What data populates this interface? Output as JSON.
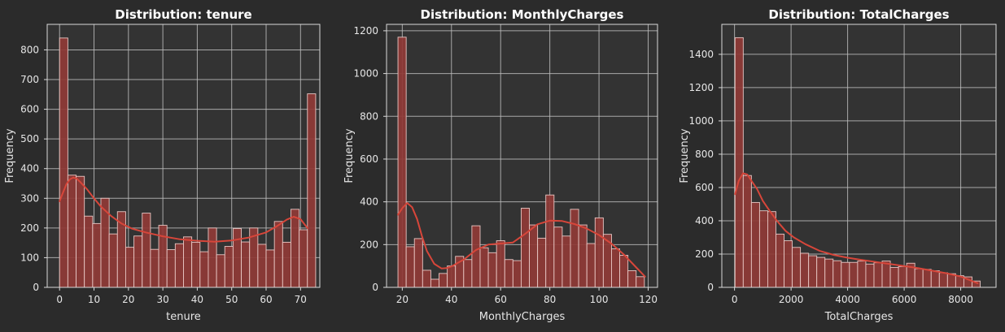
{
  "colors": {
    "figure_bg": "#2b2b2b",
    "axes_bg": "#333333",
    "grid": "#bdbdbd",
    "spine": "#d9d9d9",
    "bar_fill": "#8f3a36",
    "bar_edge": "#e8c7c4",
    "kde": "#d7463a",
    "text": "#ffffff"
  },
  "chart_data": [
    {
      "type": "bar",
      "title": "Distribution: tenure",
      "xlabel": "tenure",
      "ylabel": "Frequency",
      "xlim": [
        -3.6,
        75.6
      ],
      "ylim": [
        0,
        886
      ],
      "xticks": [
        0,
        10,
        20,
        30,
        40,
        50,
        60,
        70
      ],
      "yticks": [
        0,
        100,
        200,
        300,
        400,
        500,
        600,
        700,
        800
      ],
      "grid": true,
      "bin_start": 0,
      "bin_width": 2.4,
      "values": [
        840,
        378,
        374,
        240,
        215,
        300,
        180,
        255,
        135,
        173,
        250,
        128,
        209,
        127,
        147,
        170,
        152,
        120,
        200,
        110,
        138,
        198,
        153,
        200,
        145,
        126,
        222,
        152,
        263,
        194,
        652
      ],
      "kde": {
        "x": [
          0,
          1,
          2,
          3,
          4,
          5,
          6,
          8,
          10,
          12,
          15,
          18,
          21,
          25,
          30,
          35,
          40,
          45,
          50,
          55,
          60,
          63,
          66,
          68,
          70,
          71,
          72
        ],
        "y": [
          290,
          320,
          348,
          364,
          370,
          366,
          355,
          330,
          300,
          272,
          240,
          215,
          198,
          185,
          172,
          162,
          157,
          154,
          158,
          168,
          185,
          205,
          228,
          238,
          230,
          215,
          200
        ]
      }
    },
    {
      "type": "bar",
      "title": "Distribution: MonthlyCharges",
      "xlabel": "MonthlyCharges",
      "ylabel": "Frequency",
      "xlim": [
        13.6,
        123.8
      ],
      "ylim": [
        0,
        1230
      ],
      "xticks": [
        20,
        40,
        60,
        80,
        100,
        120
      ],
      "yticks": [
        0,
        200,
        400,
        600,
        800,
        1000,
        1200
      ],
      "grid": true,
      "bin_start": 18.25,
      "bin_width": 3.34,
      "values": [
        1170,
        190,
        228,
        80,
        38,
        65,
        100,
        145,
        130,
        288,
        185,
        162,
        218,
        130,
        125,
        370,
        292,
        230,
        432,
        282,
        240,
        365,
        292,
        205,
        325,
        248,
        180,
        150,
        78,
        50
      ],
      "kde": {
        "x": [
          18.25,
          20,
          22,
          24,
          26,
          28,
          30,
          33,
          36,
          38,
          40,
          45,
          50,
          55,
          60,
          65,
          70,
          75,
          80,
          85,
          90,
          95,
          100,
          105,
          110,
          115,
          118.75
        ],
        "y": [
          340,
          370,
          395,
          375,
          320,
          240,
          170,
          110,
          88,
          90,
          98,
          130,
          175,
          200,
          205,
          210,
          250,
          295,
          312,
          310,
          296,
          275,
          245,
          205,
          155,
          95,
          50
        ]
      }
    },
    {
      "type": "bar",
      "title": "Distribution: TotalCharges",
      "xlabel": "TotalCharges",
      "ylabel": "Frequency",
      "xlim": [
        -450,
        9250
      ],
      "ylim": [
        0,
        1580
      ],
      "xticks": [
        0,
        2000,
        4000,
        6000,
        8000
      ],
      "yticks": [
        0,
        200,
        400,
        600,
        800,
        1000,
        1200,
        1400
      ],
      "grid": true,
      "bin_start": 18.8,
      "bin_width": 289,
      "values": [
        1500,
        672,
        510,
        460,
        455,
        320,
        280,
        240,
        205,
        190,
        180,
        170,
        160,
        150,
        150,
        158,
        140,
        148,
        158,
        120,
        125,
        145,
        112,
        108,
        100,
        88,
        82,
        70,
        63,
        38
      ],
      "kde": {
        "x": [
          18.8,
          150,
          300,
          450,
          600,
          800,
          1000,
          1200,
          1500,
          1800,
          2100,
          2500,
          3000,
          3500,
          4000,
          4500,
          5000,
          5500,
          6000,
          6500,
          7000,
          7500,
          8000,
          8300,
          8600
        ],
        "y": [
          560,
          640,
          685,
          678,
          640,
          590,
          520,
          470,
          400,
          340,
          300,
          260,
          220,
          195,
          178,
          165,
          152,
          140,
          128,
          115,
          100,
          85,
          65,
          45,
          25
        ]
      }
    }
  ]
}
